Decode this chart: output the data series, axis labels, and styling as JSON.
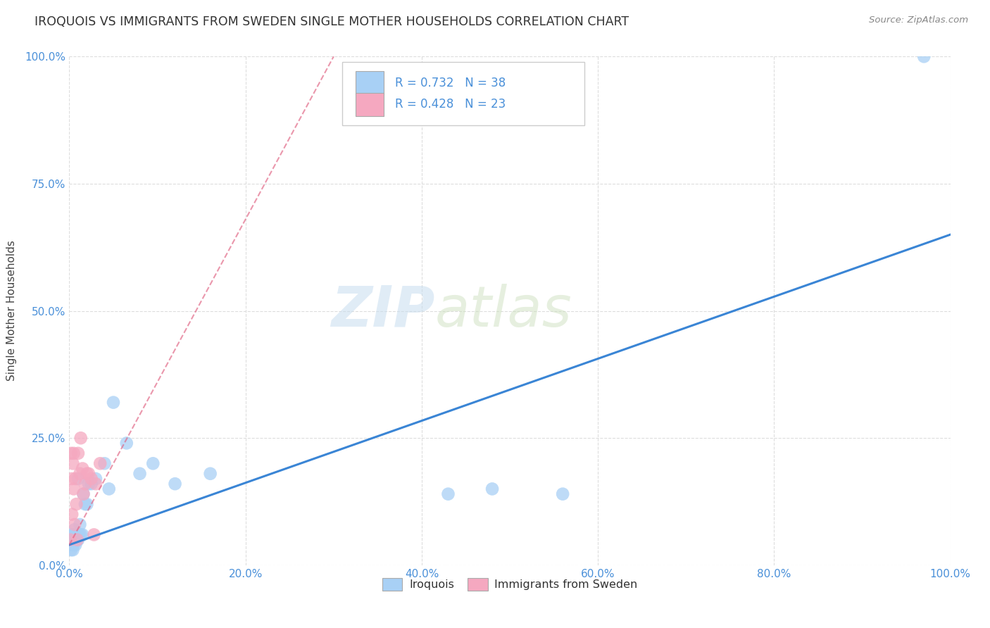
{
  "title": "IROQUOIS VS IMMIGRANTS FROM SWEDEN SINGLE MOTHER HOUSEHOLDS CORRELATION CHART",
  "source": "Source: ZipAtlas.com",
  "ylabel": "Single Mother Households",
  "ytick_labels": [
    "0.0%",
    "25.0%",
    "50.0%",
    "75.0%",
    "100.0%"
  ],
  "ytick_values": [
    0.0,
    0.25,
    0.5,
    0.75,
    1.0
  ],
  "xtick_values": [
    0.0,
    0.2,
    0.4,
    0.6,
    0.8,
    1.0
  ],
  "xtick_labels": [
    "0.0%",
    "20.0%",
    "40.0%",
    "60.0%",
    "80.0%",
    "100.0%"
  ],
  "watermark_zip": "ZIP",
  "watermark_atlas": "atlas",
  "legend_label1": "Iroquois",
  "legend_label2": "Immigrants from Sweden",
  "r1": 0.732,
  "n1": 38,
  "r2": 0.428,
  "n2": 23,
  "color_blue": "#A8D0F5",
  "color_pink": "#F5A8C0",
  "color_blue_line": "#3A85D5",
  "color_pink_line": "#E06080",
  "iroquois_x": [
    0.001,
    0.002,
    0.002,
    0.003,
    0.003,
    0.004,
    0.004,
    0.005,
    0.005,
    0.006,
    0.006,
    0.007,
    0.008,
    0.009,
    0.01,
    0.01,
    0.011,
    0.012,
    0.013,
    0.015,
    0.016,
    0.018,
    0.02,
    0.022,
    0.025,
    0.03,
    0.04,
    0.045,
    0.05,
    0.065,
    0.08,
    0.095,
    0.12,
    0.16,
    0.43,
    0.48,
    0.56,
    0.97
  ],
  "iroquois_y": [
    0.04,
    0.05,
    0.03,
    0.04,
    0.06,
    0.05,
    0.03,
    0.06,
    0.04,
    0.05,
    0.07,
    0.04,
    0.06,
    0.05,
    0.17,
    0.05,
    0.06,
    0.08,
    0.06,
    0.06,
    0.14,
    0.12,
    0.12,
    0.16,
    0.16,
    0.17,
    0.2,
    0.15,
    0.32,
    0.24,
    0.18,
    0.2,
    0.16,
    0.18,
    0.14,
    0.15,
    0.14,
    1.0
  ],
  "sweden_x": [
    0.001,
    0.002,
    0.003,
    0.003,
    0.004,
    0.005,
    0.005,
    0.006,
    0.007,
    0.008,
    0.009,
    0.01,
    0.012,
    0.013,
    0.015,
    0.016,
    0.018,
    0.02,
    0.022,
    0.025,
    0.028,
    0.03,
    0.035
  ],
  "sweden_y": [
    0.05,
    0.22,
    0.1,
    0.17,
    0.2,
    0.15,
    0.22,
    0.08,
    0.17,
    0.12,
    0.05,
    0.22,
    0.18,
    0.25,
    0.19,
    0.14,
    0.16,
    0.18,
    0.18,
    0.17,
    0.06,
    0.16,
    0.2
  ],
  "blue_line_x": [
    0.0,
    1.0
  ],
  "blue_line_y": [
    0.04,
    0.65
  ],
  "pink_line_x": [
    0.0,
    0.3
  ],
  "pink_line_y": [
    0.04,
    1.0
  ]
}
